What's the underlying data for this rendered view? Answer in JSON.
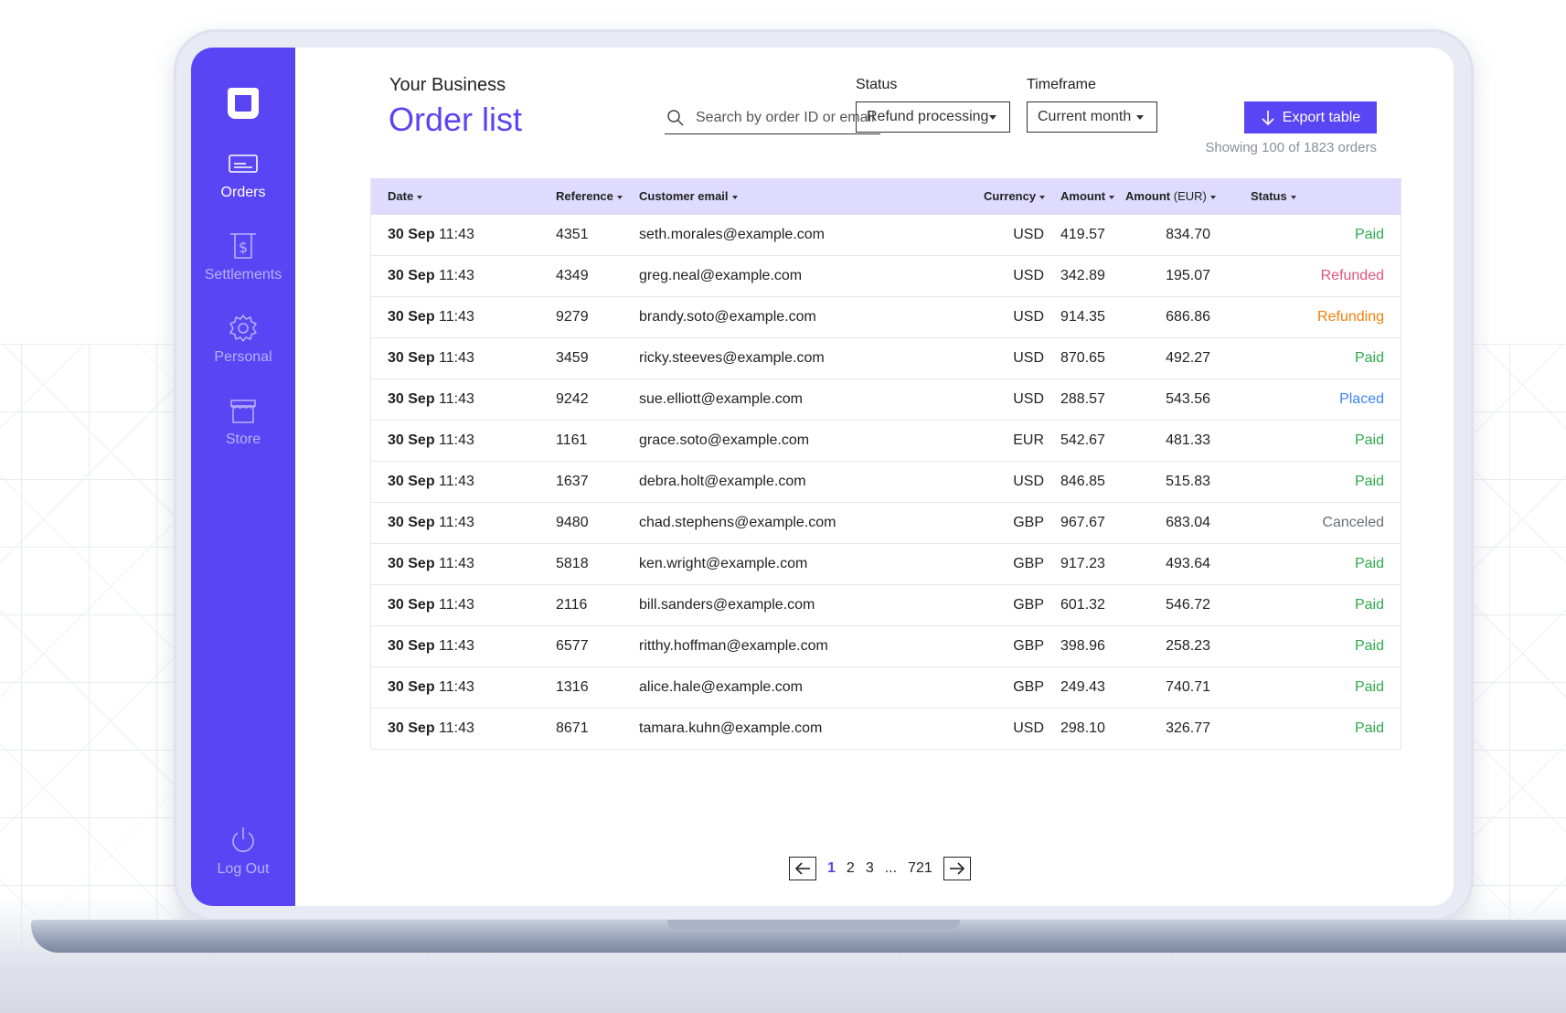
{
  "sidebar": {
    "items": [
      {
        "label": "Orders",
        "icon": "card-icon",
        "active": true
      },
      {
        "label": "Settlements",
        "icon": "receipt-dollar-icon",
        "active": false
      },
      {
        "label": "Personal",
        "icon": "gear-icon",
        "active": false
      },
      {
        "label": "Store",
        "icon": "storefront-icon",
        "active": false
      }
    ],
    "logout_label": "Log Out",
    "logout_icon": "power-icon"
  },
  "header": {
    "business_name": "Your Business",
    "title": "Order list",
    "search_placeholder": "Search by order ID or email",
    "status_label": "Status",
    "status_value": "Refund processing",
    "timeframe_label": "Timeframe",
    "timeframe_value": "Current month",
    "export_label": "Export table",
    "showing_text": "Showing 100 of 1823 orders"
  },
  "table": {
    "columns": [
      "Date",
      "Reference",
      "Customer email",
      "Currency",
      "Amount",
      "Amount",
      "(EUR)",
      "Status"
    ],
    "rows": [
      {
        "day": "30 Sep",
        "time": "11:43",
        "ref": "4351",
        "email": "seth.morales@example.com",
        "currency": "USD",
        "amount": "419.57",
        "amount_eur": "834.70",
        "status": "Paid"
      },
      {
        "day": "30 Sep",
        "time": "11:43",
        "ref": "4349",
        "email": "greg.neal@example.com",
        "currency": "USD",
        "amount": "342.89",
        "amount_eur": "195.07",
        "status": "Refunded"
      },
      {
        "day": "30 Sep",
        "time": "11:43",
        "ref": "9279",
        "email": "brandy.soto@example.com",
        "currency": "USD",
        "amount": "914.35",
        "amount_eur": "686.86",
        "status": "Refunding"
      },
      {
        "day": "30 Sep",
        "time": "11:43",
        "ref": "3459",
        "email": "ricky.steeves@example.com",
        "currency": "USD",
        "amount": "870.65",
        "amount_eur": "492.27",
        "status": "Paid"
      },
      {
        "day": "30 Sep",
        "time": "11:43",
        "ref": "9242",
        "email": "sue.elliott@example.com",
        "currency": "USD",
        "amount": "288.57",
        "amount_eur": "543.56",
        "status": "Placed"
      },
      {
        "day": "30 Sep",
        "time": "11:43",
        "ref": "1161",
        "email": "grace.soto@example.com",
        "currency": "EUR",
        "amount": "542.67",
        "amount_eur": "481.33",
        "status": "Paid"
      },
      {
        "day": "30 Sep",
        "time": "11:43",
        "ref": "1637",
        "email": "debra.holt@example.com",
        "currency": "USD",
        "amount": "846.85",
        "amount_eur": "515.83",
        "status": "Paid"
      },
      {
        "day": "30 Sep",
        "time": "11:43",
        "ref": "9480",
        "email": "chad.stephens@example.com",
        "currency": "GBP",
        "amount": "967.67",
        "amount_eur": "683.04",
        "status": "Canceled"
      },
      {
        "day": "30 Sep",
        "time": "11:43",
        "ref": "5818",
        "email": "ken.wright@example.com",
        "currency": "GBP",
        "amount": "917.23",
        "amount_eur": "493.64",
        "status": "Paid"
      },
      {
        "day": "30 Sep",
        "time": "11:43",
        "ref": "2116",
        "email": "bill.sanders@example.com",
        "currency": "GBP",
        "amount": "601.32",
        "amount_eur": "546.72",
        "status": "Paid"
      },
      {
        "day": "30 Sep",
        "time": "11:43",
        "ref": "6577",
        "email": "ritthy.hoffman@example.com",
        "currency": "GBP",
        "amount": "398.96",
        "amount_eur": "258.23",
        "status": "Paid"
      },
      {
        "day": "30 Sep",
        "time": "11:43",
        "ref": "1316",
        "email": "alice.hale@example.com",
        "currency": "GBP",
        "amount": "249.43",
        "amount_eur": "740.71",
        "status": "Paid"
      },
      {
        "day": "30 Sep",
        "time": "11:43",
        "ref": "8671",
        "email": "tamara.kuhn@example.com",
        "currency": "USD",
        "amount": "298.10",
        "amount_eur": "326.77",
        "status": "Paid"
      }
    ]
  },
  "pagination": {
    "pages": [
      "1",
      "2",
      "3",
      "...",
      "721"
    ],
    "current": "1",
    "prev_icon": "arrow-left-icon",
    "next_icon": "arrow-right-icon"
  },
  "colors": {
    "accent": "#5a45f5",
    "header_row": "#dedbff",
    "status": {
      "Paid": "#2eaa4a",
      "Refunded": "#e0537a",
      "Refunding": "#f07f0a",
      "Placed": "#3b82f6",
      "Canceled": "#6b7078"
    }
  }
}
